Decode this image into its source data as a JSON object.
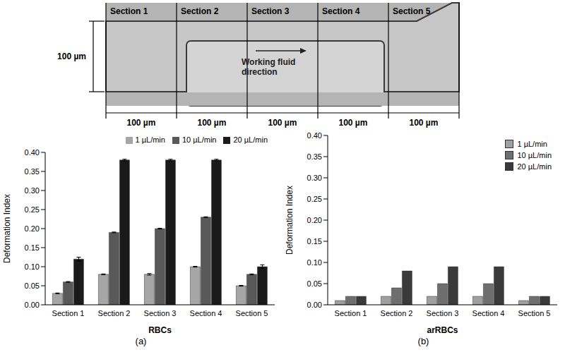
{
  "diagram": {
    "sections": [
      "Section 1",
      "Section 2",
      "Section 3",
      "Section 4",
      "Section 5"
    ],
    "height_label": "100 µm",
    "width_labels": [
      "100 µm",
      "100 µm",
      "100 µm",
      "100 µm",
      "100 µm"
    ],
    "arrow_label": "Working fluid direction"
  },
  "chart_data": [
    {
      "type": "bar",
      "caption": "(a)",
      "x_label": "RBCs",
      "y_label": "Deformation Index",
      "categories": [
        "Section 1",
        "Section 2",
        "Section 3",
        "Section 4",
        "Section 5"
      ],
      "series": [
        {
          "name": "1 µL/min",
          "color": "#a6a6a6",
          "values": [
            0.03,
            0.08,
            0.08,
            0.1,
            0.05
          ],
          "errors": [
            0.001,
            0.001,
            0.002,
            0.001,
            0.001
          ]
        },
        {
          "name": "10 µL/min",
          "color": "#595959",
          "values": [
            0.06,
            0.19,
            0.2,
            0.23,
            0.08
          ],
          "errors": [
            0.001,
            0.001,
            0.001,
            0.001,
            0.001
          ]
        },
        {
          "name": "20 µL/min",
          "color": "#1a1a1a",
          "values": [
            0.12,
            0.38,
            0.38,
            0.38,
            0.1
          ],
          "errors": [
            0.005,
            0.002,
            0.002,
            0.002,
            0.005
          ]
        }
      ],
      "ylim": [
        0,
        0.4
      ],
      "yticks": [
        {
          "value": 0,
          "label": "0.00"
        },
        0.05,
        {
          "value": 0.1,
          "label": "0.10"
        },
        0.15,
        {
          "value": 0.2,
          "label": "0.20"
        },
        0.25,
        {
          "value": 0.3,
          "label": "0.30"
        },
        0.35,
        {
          "value": 0.4,
          "label": "0.40"
        }
      ],
      "grid": false,
      "legend": "top"
    },
    {
      "type": "bar",
      "caption": "(b)",
      "x_label": "arRBCs",
      "y_label": "Deformation Index",
      "categories": [
        "Section 1",
        "Section 2",
        "Section 3",
        "Section 4",
        "Section 5"
      ],
      "series": [
        {
          "name": "1 µL/min",
          "color": "#a0a0a0",
          "values": [
            0.01,
            0.02,
            0.02,
            0.02,
            0.01
          ]
        },
        {
          "name": "10 µL/min",
          "color": "#6e6e6e",
          "values": [
            0.02,
            0.04,
            0.05,
            0.05,
            0.02
          ]
        },
        {
          "name": "20 µL/min",
          "color": "#3a3a3a",
          "values": [
            0.02,
            0.08,
            0.09,
            0.09,
            0.02
          ]
        }
      ],
      "ylim": [
        0,
        0.4
      ],
      "yticks": [
        {
          "value": 0,
          "label": "0.00"
        },
        0.05,
        {
          "value": 0.1,
          "label": "0.10"
        },
        0.15,
        {
          "value": 0.2,
          "label": "0.20"
        },
        0.25,
        {
          "value": 0.3,
          "label": "0.30"
        },
        0.35,
        {
          "value": 0.4,
          "label": "0.40"
        }
      ],
      "grid": false,
      "legend": "upper right"
    }
  ]
}
